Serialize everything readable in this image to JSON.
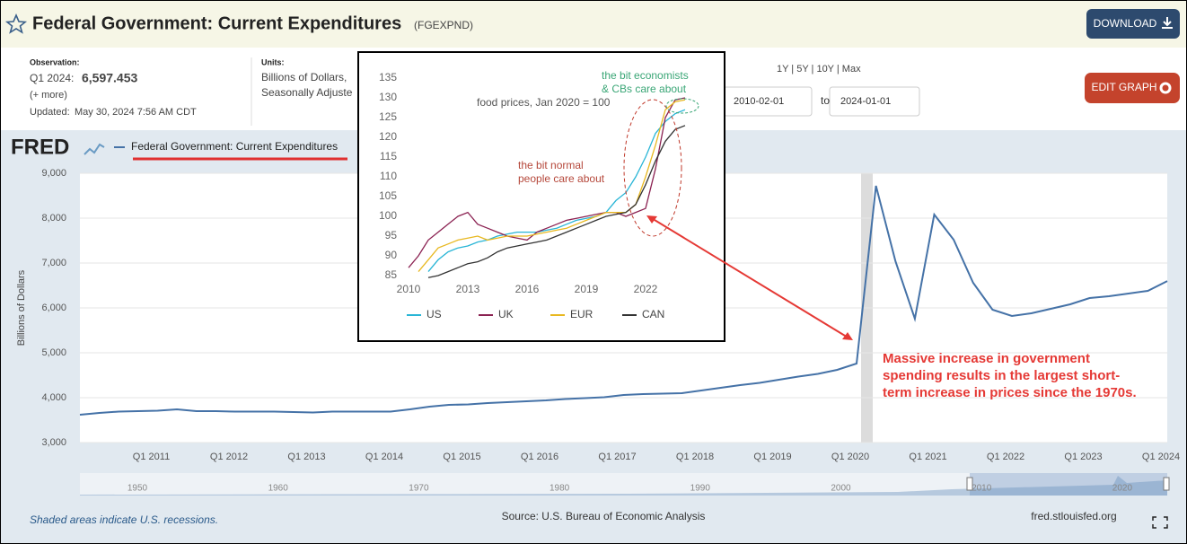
{
  "header": {
    "title": "Federal Government: Current Expenditures",
    "series_id": "(FGEXPND)",
    "download": "DOWNLOAD",
    "edit_graph": "EDIT GRAPH"
  },
  "info": {
    "observation_label": "Observation:",
    "observation_period": "Q1 2024:",
    "observation_value": "6,597.453",
    "more": "(+ more)",
    "updated_label": "Updated:",
    "updated": "May 30, 2024 7:56 AM CDT",
    "units_label": "Units:",
    "units_line1": "Billions of Dollars,",
    "units_line2": "Seasonally Adjuste"
  },
  "range": {
    "presets": "1Y | 5Y | 10Y | Max",
    "start": "2010-02-01",
    "to": "to",
    "end": "2024-01-01"
  },
  "logo": "FRED",
  "chart_data": [
    {
      "type": "line",
      "y_label": "Billions of Dollars",
      "legend": "top-left",
      "grid": true,
      "categories": [
        null,
        null,
        null,
        null,
        "Q1 2011",
        null,
        null,
        null,
        "Q1 2012",
        null,
        null,
        null,
        "Q1 2013",
        null,
        null,
        null,
        "Q1 2014",
        null,
        null,
        null,
        "Q1 2015",
        null,
        null,
        null,
        "Q1 2016",
        null,
        null,
        null,
        "Q1 2017",
        null,
        null,
        null,
        "Q1 2018",
        null,
        null,
        null,
        "Q1 2019",
        null,
        null,
        null,
        "Q1 2020",
        null,
        null,
        null,
        "Q1 2021",
        null,
        null,
        null,
        "Q1 2022",
        null,
        null,
        null,
        "Q1 2023",
        null,
        null,
        null,
        "Q1 2024"
      ],
      "series": [
        {
          "name": "Federal Government: Current Expenditures",
          "color": "#4572a7",
          "values": [
            3620,
            3660,
            3690,
            3700,
            3710,
            3740,
            3700,
            3700,
            3690,
            3690,
            3690,
            3680,
            3670,
            3690,
            3690,
            3690,
            3690,
            3740,
            3800,
            3840,
            3850,
            3880,
            3900,
            3920,
            3940,
            3970,
            3990,
            4010,
            4060,
            4080,
            4090,
            4100,
            4160,
            4220,
            4280,
            4330,
            4400,
            4470,
            4530,
            4620,
            4760,
            8720,
            7040,
            5760,
            8080,
            7520,
            6560,
            5960,
            5820,
            5880,
            5980,
            6080,
            6220,
            6260,
            6320,
            6380,
            6597.453
          ]
        }
      ],
      "ylim": [
        3000,
        9000
      ],
      "yticks": [
        {
          "value": 3000,
          "label": "3,000"
        },
        {
          "value": 4000,
          "label": "4,000"
        },
        {
          "value": 5000,
          "label": "5,000"
        },
        {
          "value": 6000,
          "label": "6,000"
        },
        {
          "value": 7000,
          "label": "7,000"
        },
        {
          "value": 8000,
          "label": "8,000"
        },
        {
          "value": 9000,
          "label": "9,000"
        }
      ]
    },
    {
      "type": "line",
      "title": "food prices, Jan 2020 = 100",
      "legend": "bottom",
      "grid": false,
      "annotations": [
        {
          "lines": [
            "the bit economists",
            "& CBs care about"
          ],
          "color": "#3aa676"
        },
        {
          "lines": [
            "the bit normal",
            "people care about"
          ],
          "color": "#b5473a"
        }
      ],
      "x": [
        2010,
        2010.5,
        2011,
        2011.5,
        2012,
        2012.5,
        2013,
        2013.5,
        2014,
        2014.5,
        2015,
        2015.5,
        2016,
        2016.5,
        2017,
        2017.5,
        2018,
        2018.5,
        2019,
        2019.5,
        2020,
        2020.5,
        2021,
        2021.5,
        2022,
        2022.5,
        2023,
        2023.5,
        2024
      ],
      "series": [
        {
          "name": "US",
          "color": "#29b5d6",
          "values": [
            null,
            null,
            86,
            89,
            91,
            92,
            92.5,
            93.5,
            94,
            95,
            95.5,
            96,
            96,
            96,
            96.5,
            97,
            98,
            99,
            99.5,
            100,
            101,
            104,
            106,
            110,
            115,
            121,
            124,
            126,
            127
          ]
        },
        {
          "name": "UK",
          "color": "#8b2252",
          "values": [
            87,
            90,
            94,
            96,
            98,
            100,
            101,
            98,
            97,
            96,
            95,
            94.5,
            94,
            96,
            97,
            98,
            99,
            99.5,
            100,
            100.5,
            101,
            101,
            100,
            101,
            102,
            112,
            125,
            129.5,
            130
          ]
        },
        {
          "name": "EUR",
          "color": "#e8b820",
          "values": [
            null,
            86,
            89,
            92,
            93,
            94,
            94.5,
            95,
            94,
            94.5,
            95,
            95,
            95,
            95.5,
            96,
            96.5,
            97,
            98,
            99,
            100,
            101,
            101,
            101,
            103,
            110,
            118,
            127,
            129,
            129.5
          ]
        },
        {
          "name": "CAN",
          "color": "#333333",
          "values": [
            null,
            null,
            84.5,
            85,
            86,
            87,
            88,
            88.5,
            89.5,
            91,
            92,
            92.5,
            93,
            93.5,
            94,
            95,
            96,
            97,
            98,
            99,
            100,
            100.5,
            101,
            103,
            108,
            114,
            119,
            122,
            123
          ]
        }
      ],
      "xlim": [
        2009.5,
        2025
      ],
      "xticks": [
        2010,
        2013,
        2016,
        2019,
        2022
      ],
      "ylim": [
        83,
        137
      ],
      "yticks": [
        85,
        90,
        95,
        100,
        105,
        110,
        115,
        120,
        125,
        130,
        135
      ]
    }
  ],
  "annotation": [
    "Massive increase in government",
    "spending results in the largest short-",
    "term increase in prices since the 1970s."
  ],
  "navigator": {
    "labels": [
      "1950",
      "1960",
      "1970",
      "1980",
      "1990",
      "2000",
      "2010",
      "2020"
    ]
  },
  "footer": {
    "recessions": "Shaded areas indicate U.S. recessions.",
    "source": "Source: U.S. Bureau of Economic Analysis",
    "site": "fred.stlouisfed.org"
  }
}
